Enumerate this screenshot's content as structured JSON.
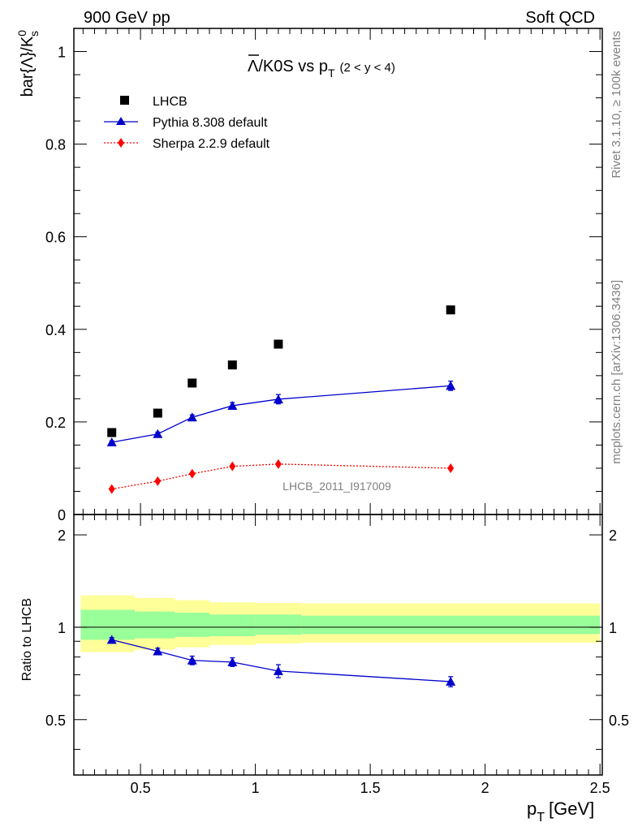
{
  "header": {
    "left": "900 GeV pp",
    "right": "Soft QCD"
  },
  "side_text": {
    "rivet": "Rivet 3.1.10, ≥ 100k events",
    "source": "mcplots.cern.ch [arXiv:1306.3436]"
  },
  "watermark": "LHCB_2011_I917009",
  "chart_data": {
    "type": "scatter",
    "title_main": "Λ/K0S vs p",
    "title_overbar": "Λ",
    "title_rest": "/K0S vs p",
    "title_sub": "T",
    "title_range": "(2 < y < 4)",
    "ylabel_main": "bar{Λ}/K",
    "ylabel_sup": "0",
    "ylabel_sub": "s",
    "ratio_ylabel": "Ratio to LHCB",
    "xlabel_main": "p",
    "xlabel_sub": "T",
    "xlabel_unit": "[GeV]",
    "xlim": [
      0.21,
      2.51
    ],
    "ylim": [
      0,
      1.05
    ],
    "ratio_ylim": [
      0.33,
      2.33
    ],
    "ratio_log": true,
    "x_ticks": [
      0.5,
      1,
      1.5,
      2,
      2.5
    ],
    "x_tick_labels": [
      "0.5",
      "1",
      "1.5",
      "2",
      "2.5"
    ],
    "y_ticks": [
      0,
      0.2,
      0.4,
      0.6,
      0.8,
      1
    ],
    "y_tick_labels": [
      "0",
      "0.2",
      "0.4",
      "0.6",
      "0.8",
      "1"
    ],
    "ratio_ticks": [
      0.5,
      1,
      2
    ],
    "ratio_tick_labels": [
      "0.5",
      "1",
      "2"
    ],
    "legend_position": "top-left",
    "series": [
      {
        "name": "LHCB",
        "marker": "square",
        "color": "#000000",
        "x": [
          0.375,
          0.575,
          0.725,
          0.9,
          1.1,
          1.85
        ],
        "y": [
          0.177,
          0.219,
          0.284,
          0.323,
          0.368,
          0.442
        ]
      },
      {
        "name": "Pythia 8.308 default",
        "marker": "triangle",
        "color": "#0000cc",
        "x": [
          0.375,
          0.575,
          0.725,
          0.9,
          1.1,
          1.85
        ],
        "y": [
          0.156,
          0.174,
          0.21,
          0.235,
          0.249,
          0.278
        ],
        "err": [
          0.003,
          0.004,
          0.005,
          0.007,
          0.01,
          0.01
        ]
      },
      {
        "name": "Sherpa 2.2.9 default",
        "marker": "diamond",
        "color": "#ff0000",
        "x": [
          0.375,
          0.575,
          0.725,
          0.9,
          1.1,
          1.85
        ],
        "y": [
          0.055,
          0.072,
          0.088,
          0.104,
          0.109,
          0.1
        ]
      }
    ],
    "ratio_series": [
      {
        "name": "Pythia 8.308 default",
        "color": "#0000cc",
        "x": [
          0.375,
          0.575,
          0.725,
          0.9,
          1.1,
          1.85
        ],
        "y": [
          0.91,
          0.835,
          0.78,
          0.77,
          0.72,
          0.665
        ],
        "err": [
          0.015,
          0.02,
          0.025,
          0.025,
          0.035,
          0.025
        ]
      }
    ],
    "uncertainty_bands": {
      "edges": [
        0.24,
        0.475,
        0.65,
        0.8,
        1.0,
        1.2,
        2.5
      ],
      "green_lo": [
        0.91,
        0.92,
        0.93,
        0.935,
        0.945,
        0.95
      ],
      "green_hi": [
        1.14,
        1.125,
        1.115,
        1.1,
        1.1,
        1.09
      ],
      "yellow_lo": [
        0.83,
        0.845,
        0.86,
        0.875,
        0.885,
        0.89
      ],
      "yellow_hi": [
        1.27,
        1.245,
        1.225,
        1.205,
        1.2,
        1.195
      ],
      "green_color": "#99ff99",
      "yellow_color": "#ffff99"
    }
  }
}
